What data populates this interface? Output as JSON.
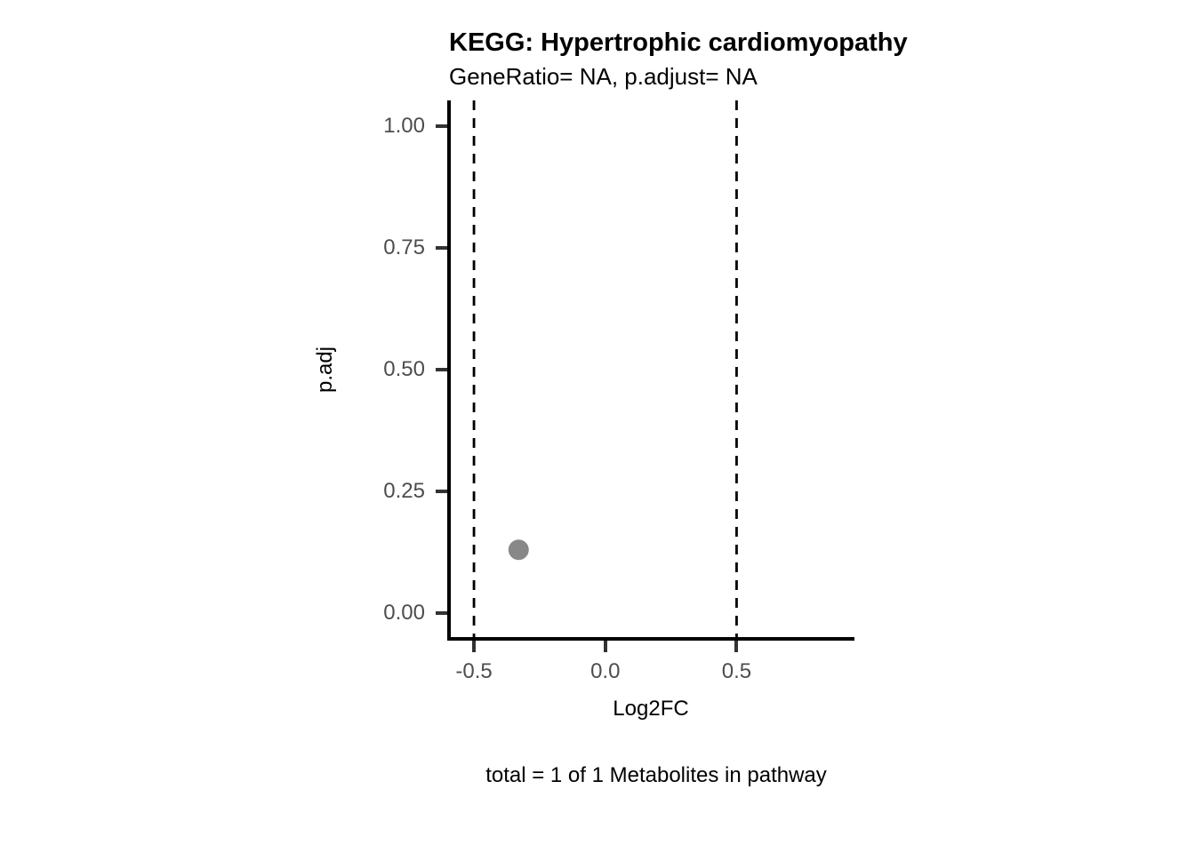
{
  "chart_data": {
    "type": "scatter",
    "title": "KEGG: Hypertrophic cardiomyopathy",
    "subtitle": "GeneRatio= NA, p.adjust= NA",
    "xlabel": "Log2FC",
    "ylabel": "p.adj",
    "caption": "total = 1 of 1 Metabolites in pathway",
    "xlim": [
      -0.595,
      0.942
    ],
    "ylim": [
      -0.053,
      1.053
    ],
    "x_ticks": [
      {
        "value": -0.5,
        "label": "-0.5"
      },
      {
        "value": 0.0,
        "label": "0.0"
      },
      {
        "value": 0.5,
        "label": "0.5"
      }
    ],
    "y_ticks": [
      {
        "value": 0.0,
        "label": "0.00"
      },
      {
        "value": 0.25,
        "label": "0.25"
      },
      {
        "value": 0.5,
        "label": "0.50"
      },
      {
        "value": 0.75,
        "label": "0.75"
      },
      {
        "value": 1.0,
        "label": "1.00"
      }
    ],
    "vlines": [
      {
        "x": -0.5,
        "linetype": "dashed"
      },
      {
        "x": 0.5,
        "linetype": "dashed"
      }
    ],
    "points": [
      {
        "x": -0.33,
        "y": 0.13
      }
    ],
    "grid": false,
    "legend": "none",
    "styles": {
      "axis_line_color": "#000000",
      "tick_color": "#333333",
      "tick_label_color": "#4d4d4d",
      "vline_color": "#000000",
      "vline_dash_pattern": "11 9",
      "point_color": "#888888",
      "point_radius_px": 11.5
    }
  }
}
